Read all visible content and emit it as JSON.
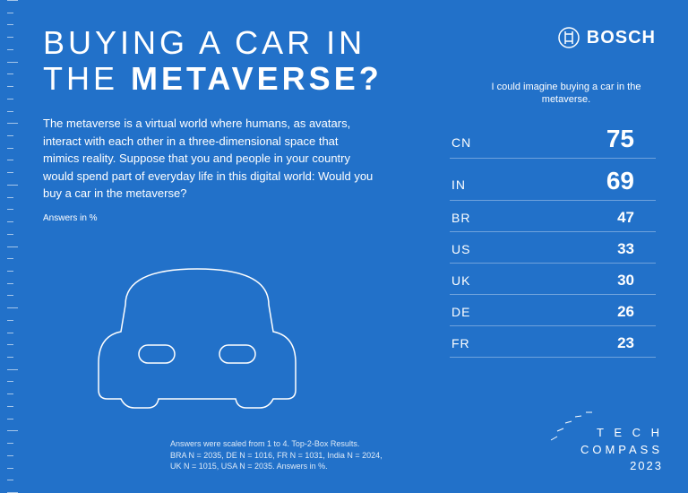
{
  "type": "infographic",
  "background_color": "#2271c9",
  "text_color": "#ffffff",
  "logo": {
    "brand": "BOSCH"
  },
  "title": {
    "line1": "BUYING A CAR IN",
    "line2_pre": "THE ",
    "line2_bold": "METAVERSE?",
    "fontsize": 36
  },
  "description": "The metaverse is a virtual world where humans, as avatars, interact with each other in a three-dimensional space that mimics reality. Suppose that you and people in your country would spend part of everyday life in this digital world: Would you buy a car in the metaverse?",
  "answers_label": "Answers in %",
  "subtitle": "I could imagine buying a car in the metaverse.",
  "data": {
    "highlight_threshold": 50,
    "highlight_fontsize": 28,
    "normal_fontsize": 17,
    "rows": [
      {
        "country": "CN",
        "value": 75
      },
      {
        "country": "IN",
        "value": 69
      },
      {
        "country": "BR",
        "value": 47
      },
      {
        "country": "US",
        "value": 33
      },
      {
        "country": "UK",
        "value": 30
      },
      {
        "country": "DE",
        "value": 26
      },
      {
        "country": "FR",
        "value": 23
      }
    ]
  },
  "footnote": {
    "line1": "Answers were scaled from 1 to 4. Top-2-Box Results.",
    "line2": "BRA N = 2035, DE N = 1016, FR N = 1031, India N = 2024,",
    "line3": "UK N = 1015, USA N = 2035. Answers in %."
  },
  "compass": {
    "word1": "TECH",
    "word2": "COMPASS",
    "year": "2023"
  },
  "ruler": {
    "count": 40,
    "long_every": 5
  }
}
